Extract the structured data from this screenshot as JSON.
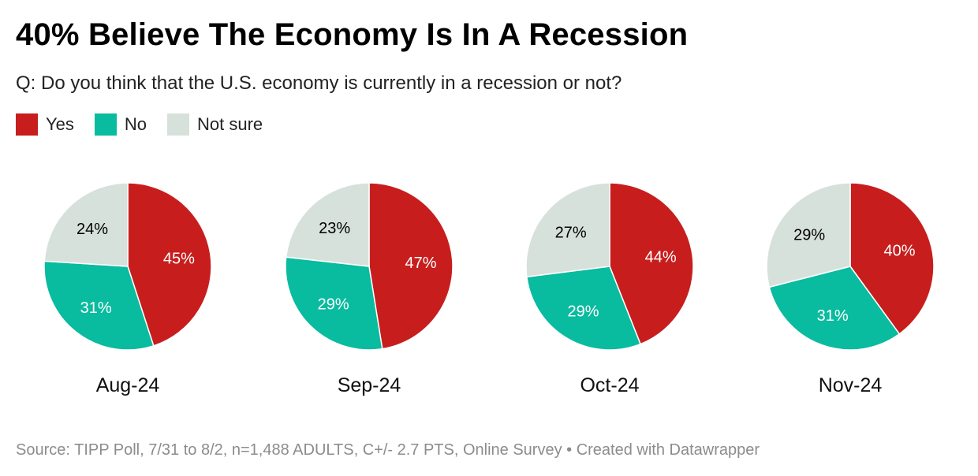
{
  "header": {
    "title": "40% Believe The Economy Is In A Recession",
    "subtitle": "Q: Do you think that the U.S. economy is currently in a recession or not?"
  },
  "legend": [
    {
      "label": "Yes",
      "color": "#c71e1d"
    },
    {
      "label": "No",
      "color": "#09bb9f"
    },
    {
      "label": "Not sure",
      "color": "#d7e1dc"
    }
  ],
  "chart_data": {
    "type": "pie",
    "series_names": [
      "Yes",
      "No",
      "Not sure"
    ],
    "colors": [
      "#c71e1d",
      "#09bb9f",
      "#d7e1dc"
    ],
    "label_colors": [
      "#ffffff",
      "#ffffff",
      "#000000"
    ],
    "pies": [
      {
        "label": "Aug-24",
        "values": [
          45,
          31,
          24
        ],
        "value_labels": [
          "45%",
          "31%",
          "24%"
        ]
      },
      {
        "label": "Sep-24",
        "values": [
          47,
          29,
          23
        ],
        "value_labels": [
          "47%",
          "29%",
          "23%"
        ]
      },
      {
        "label": "Oct-24",
        "values": [
          44,
          29,
          27
        ],
        "value_labels": [
          "44%",
          "29%",
          "27%"
        ]
      },
      {
        "label": "Nov-24",
        "values": [
          40,
          31,
          29
        ],
        "value_labels": [
          "40%",
          "31%",
          "29%"
        ]
      }
    ]
  },
  "footer": {
    "source": "Source: TIPP Poll, 7/31 to 8/2, n=1,488 ADULTS, C+/- 2.7 PTS, Online Survey • Created with Datawrapper"
  }
}
